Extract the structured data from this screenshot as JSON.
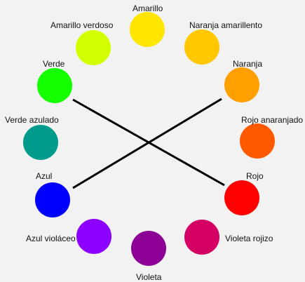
{
  "colors": [
    {
      "key": "amarillo",
      "label": "Amarillo",
      "fill": "#ffe600"
    },
    {
      "key": "naranja_amarillento",
      "label": "Naranja amarillento",
      "fill": "#ffc700"
    },
    {
      "key": "naranja",
      "label": "Naranja",
      "fill": "#ffa000"
    },
    {
      "key": "rojo_anaranjado",
      "label": "Rojo anaranjado",
      "fill": "#ff5a00"
    },
    {
      "key": "rojo",
      "label": "Rojo",
      "fill": "#ff0000"
    },
    {
      "key": "violeta_rojizo",
      "label": "Violeta rojizo",
      "fill": "#d40064"
    },
    {
      "key": "violeta",
      "label": "Violeta",
      "fill": "#8c0096"
    },
    {
      "key": "azul_violaceo",
      "label": "Azul violáceo",
      "fill": "#8c00ff"
    },
    {
      "key": "azul",
      "label": "Azul",
      "fill": "#0000ff"
    },
    {
      "key": "verde_azulado",
      "label": "Verde azulado",
      "fill": "#009b8c"
    },
    {
      "key": "verde",
      "label": "Verde",
      "fill": "#14ff00"
    },
    {
      "key": "amarillo_verdoso",
      "label": "Amarillo verdoso",
      "fill": "#d2ff00"
    }
  ],
  "connections": [
    {
      "from": "verde",
      "to": "rojo"
    },
    {
      "from": "naranja",
      "to": "azul"
    }
  ],
  "line_color": "#000000"
}
